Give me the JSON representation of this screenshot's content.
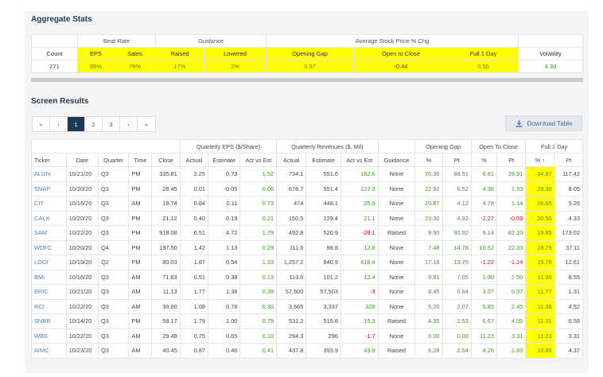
{
  "aggregate": {
    "title": "Aggregate Stats",
    "groups": [
      "Beat Rate",
      "Guidance",
      "Average Stock Price % Chg"
    ],
    "headers": [
      "Count",
      "EPS",
      "Sales",
      "Raised",
      "Lowered",
      "Opening Gap",
      "Open to Close",
      "Full 1 Day",
      "Volatility"
    ],
    "values": [
      "271",
      "85%",
      "78%",
      "17%",
      "2%",
      "0.97",
      "-0.44",
      "0.55",
      "4.39"
    ]
  },
  "results": {
    "title": "Screen Results",
    "pager": [
      "«",
      "‹",
      "1",
      "2",
      "3",
      "›",
      "»"
    ],
    "download_label": "Download Table",
    "groups": [
      "Quarterly EPS ($/Share)",
      "Quarterly Revenues ($, Mil)",
      "Opening Gap",
      "Open To Close",
      "Full 1 Day"
    ],
    "headers": [
      "Ticker",
      "Date",
      "Quarter",
      "Time",
      "Close",
      "Actual",
      "Estimate",
      "Act vs Est",
      "Actual",
      "Estimate",
      "Act vs Est",
      "Guidance",
      "%",
      "Pt",
      "%",
      "Pt",
      "% ↑",
      "Pt"
    ],
    "rows": [
      [
        "ALGN",
        "10/21/20",
        "Q3",
        "PM",
        "335.81",
        "2.25",
        "0.73",
        "1.52",
        "734.1",
        "551.6",
        "182.6",
        "None",
        "26.36",
        "88.51",
        "6.81",
        "28.91",
        "34.97",
        "117.42"
      ],
      [
        "SNAP",
        "10/20/20",
        "Q3",
        "PM",
        "28.45",
        "0.01",
        "-0.05",
        "0.06",
        "678.7",
        "551.4",
        "127.3",
        "None",
        "22.92",
        "6.52",
        "4.38",
        "1.53",
        "28.30",
        "8.05"
      ],
      [
        "CIT",
        "10/16/20",
        "Q3",
        "AM",
        "19.74",
        "0.84",
        "0.11",
        "0.73",
        "474",
        "448.1",
        "25.9",
        "None",
        "20.87",
        "4.12",
        "4.78",
        "1.14",
        "26.65",
        "5.26"
      ],
      [
        "CALX",
        "10/20/20",
        "Q3",
        "PM",
        "21.12",
        "0.40",
        "0.19",
        "0.21",
        "150.5",
        "129.4",
        "21.1",
        "None",
        "23.30",
        "4.92",
        "-2.27",
        "-0.59",
        "20.50",
        "4.33"
      ],
      [
        "SAM",
        "10/22/20",
        "Q3",
        "PM",
        "918.08",
        "6.51",
        "4.72",
        "1.79",
        "492.8",
        "520.9",
        "-28.1",
        "Raised",
        "9.90",
        "90.92",
        "8.14",
        "82.10",
        "18.85",
        "173.02"
      ],
      [
        "WDFC",
        "10/20/20",
        "Q4",
        "PM",
        "197.50",
        "1.42",
        "1.13",
        "0.29",
        "111.6",
        "98.8",
        "12.8",
        "None",
        "7.48",
        "14.78",
        "10.52",
        "22.33",
        "18.79",
        "37.11"
      ],
      [
        "LOGI",
        "10/19/20",
        "Q2",
        "PM",
        "80.03",
        "1.87",
        "0.54",
        "1.33",
        "1,257.2",
        "840.9",
        "416.4",
        "None",
        "17.18",
        "13.75",
        "-1.22",
        "-1.14",
        "15.76",
        "12.61"
      ],
      [
        "BMI",
        "10/16/20",
        "Q3",
        "AM",
        "71.83",
        "0.51",
        "0.38",
        "0.13",
        "113.6",
        "101.2",
        "12.4",
        "None",
        "9.81",
        "7.05",
        "1.90",
        "1.50",
        "11.90",
        "8.55"
      ],
      [
        "ERIC",
        "10/21/20",
        "Q3",
        "AM",
        "11.13",
        "1.77",
        "1.38",
        "0.39",
        "57,500",
        "57,503",
        "-3",
        "None",
        "8.45",
        "0.94",
        "3.07",
        "0.37",
        "11.77",
        "1.31"
      ],
      [
        "RCI",
        "10/22/20",
        "Q3",
        "AM",
        "39.80",
        "1.08",
        "0.78",
        "0.30",
        "3,665",
        "3,337",
        "328",
        "None",
        "5.20",
        "2.07",
        "5.85",
        "2.45",
        "11.36",
        "4.52"
      ],
      [
        "SNBR",
        "10/14/20",
        "Q3",
        "PM",
        "58.17",
        "1.79",
        "1.00",
        "0.79",
        "531.2",
        "515.8",
        "15.3",
        "Raised",
        "4.35",
        "2.53",
        "6.67",
        "4.05",
        "11.31",
        "6.58"
      ],
      [
        "WBS",
        "10/22/20",
        "Q3",
        "AM",
        "29.48",
        "0.75",
        "0.65",
        "0.10",
        "294.3",
        "296",
        "-1.7",
        "None",
        "0.00",
        "0.00",
        "11.23",
        "3.31",
        "11.23",
        "3.31"
      ],
      [
        "AIMC",
        "10/23/20",
        "Q3",
        "AM",
        "40.45",
        "0.87",
        "0.46",
        "0.41",
        "437.8",
        "393.9",
        "43.9",
        "Raised",
        "6.28",
        "2.54",
        "4.26",
        "1.83",
        "10.80",
        "4.37"
      ]
    ]
  }
}
